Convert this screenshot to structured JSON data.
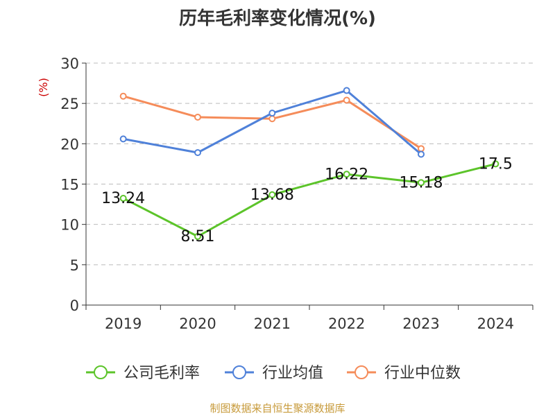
{
  "chart_data": {
    "type": "line",
    "title": "历年毛利率变化情况(%)",
    "ylabel": "(%)",
    "xlabel": "",
    "categories": [
      "2019",
      "2020",
      "2021",
      "2022",
      "2023",
      "2024"
    ],
    "ylim": [
      0,
      30
    ],
    "yticks": [
      "0",
      "5",
      "10",
      "15",
      "20",
      "25",
      "30"
    ],
    "grid": true,
    "legend_position": "bottom",
    "series": [
      {
        "name": "公司毛利率",
        "color": "#5cc42a",
        "values": [
          13.24,
          8.51,
          13.68,
          16.22,
          15.18,
          17.5
        ],
        "labels": [
          "13.24",
          "8.51",
          "13.68",
          "16.22",
          "15.18",
          "17.5"
        ]
      },
      {
        "name": "行业均值",
        "color": "#4f81d9",
        "values": [
          20.6,
          18.9,
          23.8,
          26.6,
          18.7,
          null
        ]
      },
      {
        "name": "行业中位数",
        "color": "#f58c5a",
        "values": [
          25.9,
          23.3,
          23.1,
          25.4,
          19.4,
          null
        ]
      }
    ]
  },
  "source": {
    "text": "制图数据来自恒生聚源数据库",
    "color": "#c79a3a"
  },
  "ylabel_color": "#cc0000"
}
